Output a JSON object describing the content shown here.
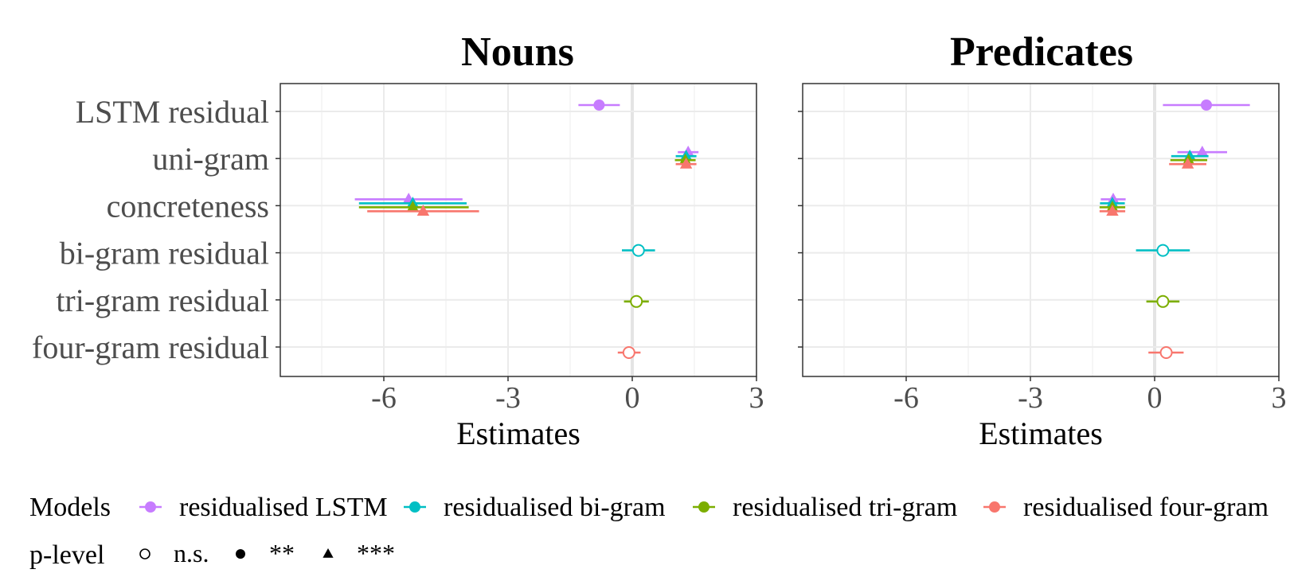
{
  "chart_data": {
    "type": "forest",
    "predictors": [
      "LSTM residual",
      "uni-gram",
      "concreteness",
      "bi-gram residual",
      "tri-gram residual",
      "four-gram residual"
    ],
    "xlabel": "Estimates",
    "xlim": [
      -8.5,
      3
    ],
    "xticks": [
      -6,
      -3,
      0,
      3
    ],
    "grid": true,
    "series_colors": {
      "residualised LSTM": "#C77CFF",
      "residualised bi-gram": "#00BFC4",
      "residualised tri-gram": "#7CAE00",
      "residualised four-gram": "#F8766D"
    },
    "panels": [
      {
        "title": "Nouns",
        "points": [
          {
            "model": "residualised LSTM",
            "predictor": "LSTM residual",
            "estimate": -0.8,
            "lower": -1.3,
            "upper": -0.3,
            "p_level": "**"
          },
          {
            "model": "residualised LSTM",
            "predictor": "uni-gram",
            "estimate": 1.35,
            "lower": 1.1,
            "upper": 1.6,
            "p_level": "***"
          },
          {
            "model": "residualised bi-gram",
            "predictor": "uni-gram",
            "estimate": 1.3,
            "lower": 1.05,
            "upper": 1.55,
            "p_level": "***"
          },
          {
            "model": "residualised tri-gram",
            "predictor": "uni-gram",
            "estimate": 1.28,
            "lower": 1.03,
            "upper": 1.53,
            "p_level": "***"
          },
          {
            "model": "residualised four-gram",
            "predictor": "uni-gram",
            "estimate": 1.3,
            "lower": 1.05,
            "upper": 1.55,
            "p_level": "***"
          },
          {
            "model": "residualised LSTM",
            "predictor": "concreteness",
            "estimate": -5.4,
            "lower": -6.7,
            "upper": -4.1,
            "p_level": "***"
          },
          {
            "model": "residualised bi-gram",
            "predictor": "concreteness",
            "estimate": -5.3,
            "lower": -6.6,
            "upper": -4.0,
            "p_level": "***"
          },
          {
            "model": "residualised tri-gram",
            "predictor": "concreteness",
            "estimate": -5.3,
            "lower": -6.6,
            "upper": -3.95,
            "p_level": "***"
          },
          {
            "model": "residualised four-gram",
            "predictor": "concreteness",
            "estimate": -5.05,
            "lower": -6.4,
            "upper": -3.7,
            "p_level": "***"
          },
          {
            "model": "residualised bi-gram",
            "predictor": "bi-gram residual",
            "estimate": 0.15,
            "lower": -0.25,
            "upper": 0.55,
            "p_level": "n.s."
          },
          {
            "model": "residualised tri-gram",
            "predictor": "tri-gram residual",
            "estimate": 0.1,
            "lower": -0.2,
            "upper": 0.4,
            "p_level": "n.s."
          },
          {
            "model": "residualised four-gram",
            "predictor": "four-gram residual",
            "estimate": -0.08,
            "lower": -0.35,
            "upper": 0.2,
            "p_level": "n.s."
          }
        ]
      },
      {
        "title": "Predicates",
        "points": [
          {
            "model": "residualised LSTM",
            "predictor": "LSTM residual",
            "estimate": 1.25,
            "lower": 0.2,
            "upper": 2.3,
            "p_level": "**"
          },
          {
            "model": "residualised LSTM",
            "predictor": "uni-gram",
            "estimate": 1.15,
            "lower": 0.55,
            "upper": 1.75,
            "p_level": "***"
          },
          {
            "model": "residualised bi-gram",
            "predictor": "uni-gram",
            "estimate": 0.85,
            "lower": 0.4,
            "upper": 1.3,
            "p_level": "***"
          },
          {
            "model": "residualised tri-gram",
            "predictor": "uni-gram",
            "estimate": 0.82,
            "lower": 0.38,
            "upper": 1.27,
            "p_level": "***"
          },
          {
            "model": "residualised four-gram",
            "predictor": "uni-gram",
            "estimate": 0.8,
            "lower": 0.35,
            "upper": 1.25,
            "p_level": "***"
          },
          {
            "model": "residualised LSTM",
            "predictor": "concreteness",
            "estimate": -1.0,
            "lower": -1.3,
            "upper": -0.7,
            "p_level": "***"
          },
          {
            "model": "residualised bi-gram",
            "predictor": "concreteness",
            "estimate": -1.02,
            "lower": -1.32,
            "upper": -0.72,
            "p_level": "***"
          },
          {
            "model": "residualised tri-gram",
            "predictor": "concreteness",
            "estimate": -1.02,
            "lower": -1.33,
            "upper": -0.71,
            "p_level": "***"
          },
          {
            "model": "residualised four-gram",
            "predictor": "concreteness",
            "estimate": -1.02,
            "lower": -1.33,
            "upper": -0.71,
            "p_level": "***"
          },
          {
            "model": "residualised bi-gram",
            "predictor": "bi-gram residual",
            "estimate": 0.2,
            "lower": -0.45,
            "upper": 0.85,
            "p_level": "n.s."
          },
          {
            "model": "residualised tri-gram",
            "predictor": "tri-gram residual",
            "estimate": 0.2,
            "lower": -0.2,
            "upper": 0.6,
            "p_level": "n.s."
          },
          {
            "model": "residualised four-gram",
            "predictor": "four-gram residual",
            "estimate": 0.28,
            "lower": -0.15,
            "upper": 0.7,
            "p_level": "n.s."
          }
        ]
      }
    ],
    "legend": {
      "placement": "bottom",
      "models_title": "Models",
      "models": [
        "residualised LSTM",
        "residualised bi-gram",
        "residualised tri-gram",
        "residualised four-gram"
      ],
      "plevel_title": "p-level",
      "plevels": [
        {
          "label": "n.s.",
          "shape": "open-circle"
        },
        {
          "label": "**",
          "shape": "filled-circle"
        },
        {
          "label": "***",
          "shape": "triangle"
        }
      ]
    }
  }
}
